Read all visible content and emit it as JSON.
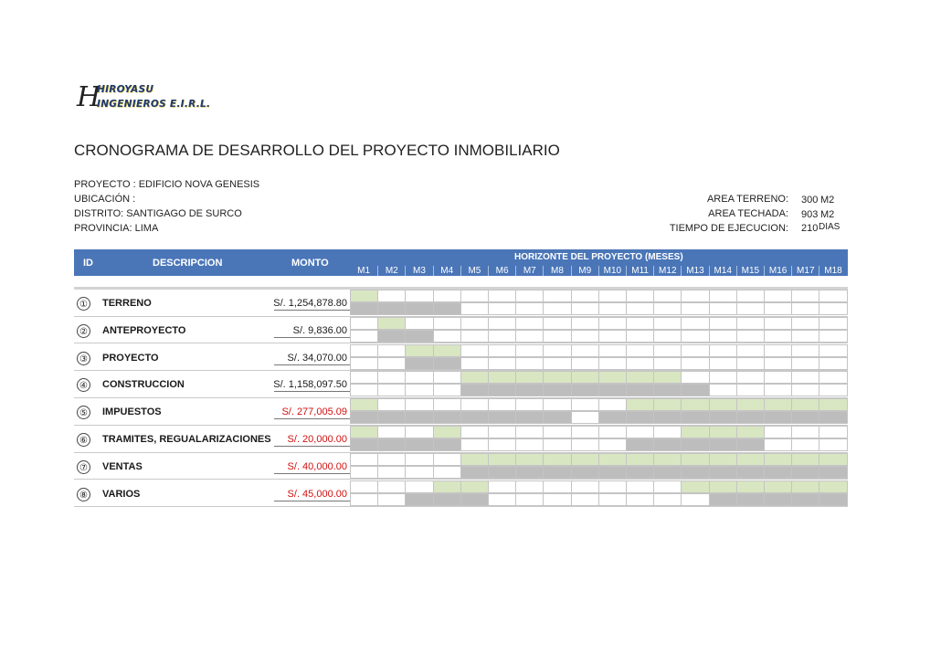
{
  "company": {
    "logo_mark": "H",
    "name_line1": "HIROYASU",
    "name_line2": "INGENIEROS E.I.R.L."
  },
  "title": "CRONOGRAMA DE DESARROLLO DEL PROYECTO INMOBILIARIO",
  "project_info": {
    "proyecto": "PROYECTO : EDIFICIO NOVA GENESIS",
    "ubicacion": "UBICACIÓN :",
    "distrito": "DISTRITO:  SANTIGAGO DE SURCO",
    "provincia": "PROVINCIA:  LIMA"
  },
  "summary": {
    "area_terreno_label": "AREA TERRENO:",
    "area_terreno_value": "300",
    "area_terreno_unit": "M2",
    "area_techada_label": "AREA TECHADA:",
    "area_techada_value": "903",
    "area_techada_unit": "M2",
    "tiempo_label": "TIEMPO DE EJECUCION:",
    "tiempo_value": "210",
    "tiempo_unit": "DIAS"
  },
  "table": {
    "col_id": "ID",
    "col_desc": "DESCRIPCION",
    "col_monto": "MONTO",
    "horizon_title": "HORIZONTE DEL PROYECTO (MESES)",
    "months": [
      "M1",
      "M2",
      "M3",
      "M4",
      "M5",
      "M6",
      "M7",
      "M8",
      "M9",
      "M10",
      "M11",
      "M12",
      "M13",
      "M14",
      "M15",
      "M16",
      "M17",
      "M18"
    ],
    "colors": {
      "header": "#4a76b8",
      "planned": "#d9e6c2",
      "executed": "#bdbdbd",
      "highlight_amount": "#d01010"
    },
    "rows": [
      {
        "id": "①",
        "desc": "TERRENO",
        "amount": "S/. 1,254,878.80",
        "red": false,
        "planned_months": [
          1
        ],
        "executed_months": [
          1,
          2,
          3,
          4
        ]
      },
      {
        "id": "②",
        "desc": "ANTEPROYECTO",
        "amount": "S/. 9,836.00",
        "red": false,
        "planned_months": [
          2
        ],
        "executed_months": [
          2,
          3
        ]
      },
      {
        "id": "③",
        "desc": "PROYECTO",
        "amount": "S/. 34,070.00",
        "red": false,
        "planned_months": [
          3,
          4
        ],
        "executed_months": [
          3,
          4
        ]
      },
      {
        "id": "④",
        "desc": "CONSTRUCCION",
        "amount": "S/. 1,158,097.50",
        "red": false,
        "planned_months": [
          5,
          6,
          7,
          8,
          9,
          10,
          11,
          12
        ],
        "executed_months": [
          5,
          6,
          7,
          8,
          9,
          10,
          11,
          12,
          13
        ]
      },
      {
        "id": "⑤",
        "desc": "IMPUESTOS",
        "amount": "S/. 277,005.09",
        "red": true,
        "planned_months": [
          1,
          11,
          12,
          13,
          14,
          15,
          16,
          17,
          18
        ],
        "executed_months": [
          1,
          2,
          3,
          4,
          5,
          6,
          7,
          8,
          10,
          11,
          12,
          13,
          14,
          15,
          16,
          17,
          18
        ]
      },
      {
        "id": "⑥",
        "desc": "TRAMITES, REGUALARIZACIONES",
        "amount": "S/. 20,000.00",
        "red": true,
        "planned_months": [
          1,
          4,
          13,
          14,
          15
        ],
        "executed_months": [
          1,
          2,
          3,
          4,
          11,
          12,
          13,
          14,
          15
        ]
      },
      {
        "id": "⑦",
        "desc": "VENTAS",
        "amount": "S/. 40,000.00",
        "red": true,
        "planned_months": [
          5,
          6,
          7,
          8,
          9,
          10,
          11,
          12,
          13,
          14,
          15,
          16,
          17,
          18
        ],
        "executed_months": [
          5,
          6,
          7,
          8,
          9,
          10,
          11,
          12,
          13,
          14,
          15,
          16,
          17,
          18
        ]
      },
      {
        "id": "⑧",
        "desc": "VARIOS",
        "amount": "S/. 45,000.00",
        "red": true,
        "planned_months": [
          4,
          5,
          13,
          14,
          15,
          16,
          17,
          18
        ],
        "executed_months": [
          3,
          4,
          5,
          14,
          15,
          16,
          17,
          18
        ]
      }
    ]
  }
}
